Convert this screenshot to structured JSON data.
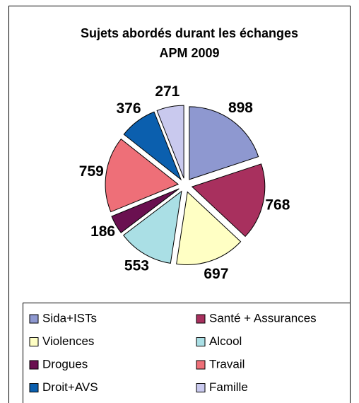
{
  "chart_data": {
    "type": "pie",
    "title": "Sujets abordés durant les échanges",
    "subtitle": "APM 2009",
    "categories": [
      "Sida+ISTs",
      "Santé + Assurances",
      "Violences",
      "Alcool",
      "Drogues",
      "Travail",
      "Droit+AVS",
      "Famille"
    ],
    "values": [
      898,
      768,
      697,
      553,
      186,
      759,
      376,
      271
    ],
    "colors": [
      "#8e98d0",
      "#a8305e",
      "#ffffc4",
      "#aadfe5",
      "#6a1050",
      "#ee6f78",
      "#0b5fae",
      "#c9c9ee"
    ],
    "legend": "bottom"
  }
}
